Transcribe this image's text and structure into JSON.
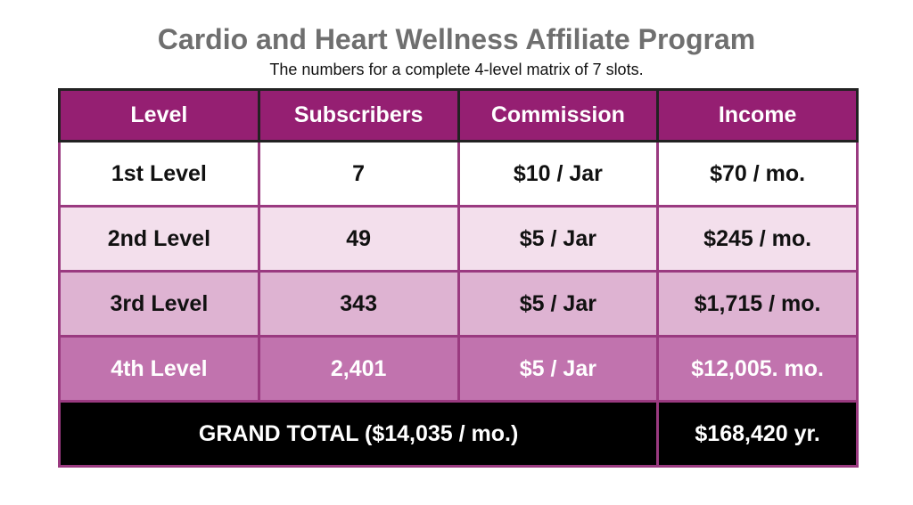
{
  "header": {
    "title": "Cardio and Heart Wellness Affiliate Program",
    "subtitle": "The numbers for a complete 4-level matrix of 7 slots."
  },
  "table": {
    "columns": [
      "Level",
      "Subscribers",
      "Commission",
      "Income"
    ],
    "rows": [
      [
        "1st Level",
        "7",
        "$10 / Jar",
        "$70 / mo."
      ],
      [
        "2nd Level",
        "49",
        "$5 / Jar",
        "$245 / mo."
      ],
      [
        "3rd Level",
        "343",
        "$5 / Jar",
        "$1,715 / mo."
      ],
      [
        "4th Level",
        "2,401",
        "$5 / Jar",
        "$12,005. mo."
      ]
    ],
    "total": {
      "label": "GRAND TOTAL ($14,035 / mo.)",
      "value": "$168,420 yr."
    }
  }
}
